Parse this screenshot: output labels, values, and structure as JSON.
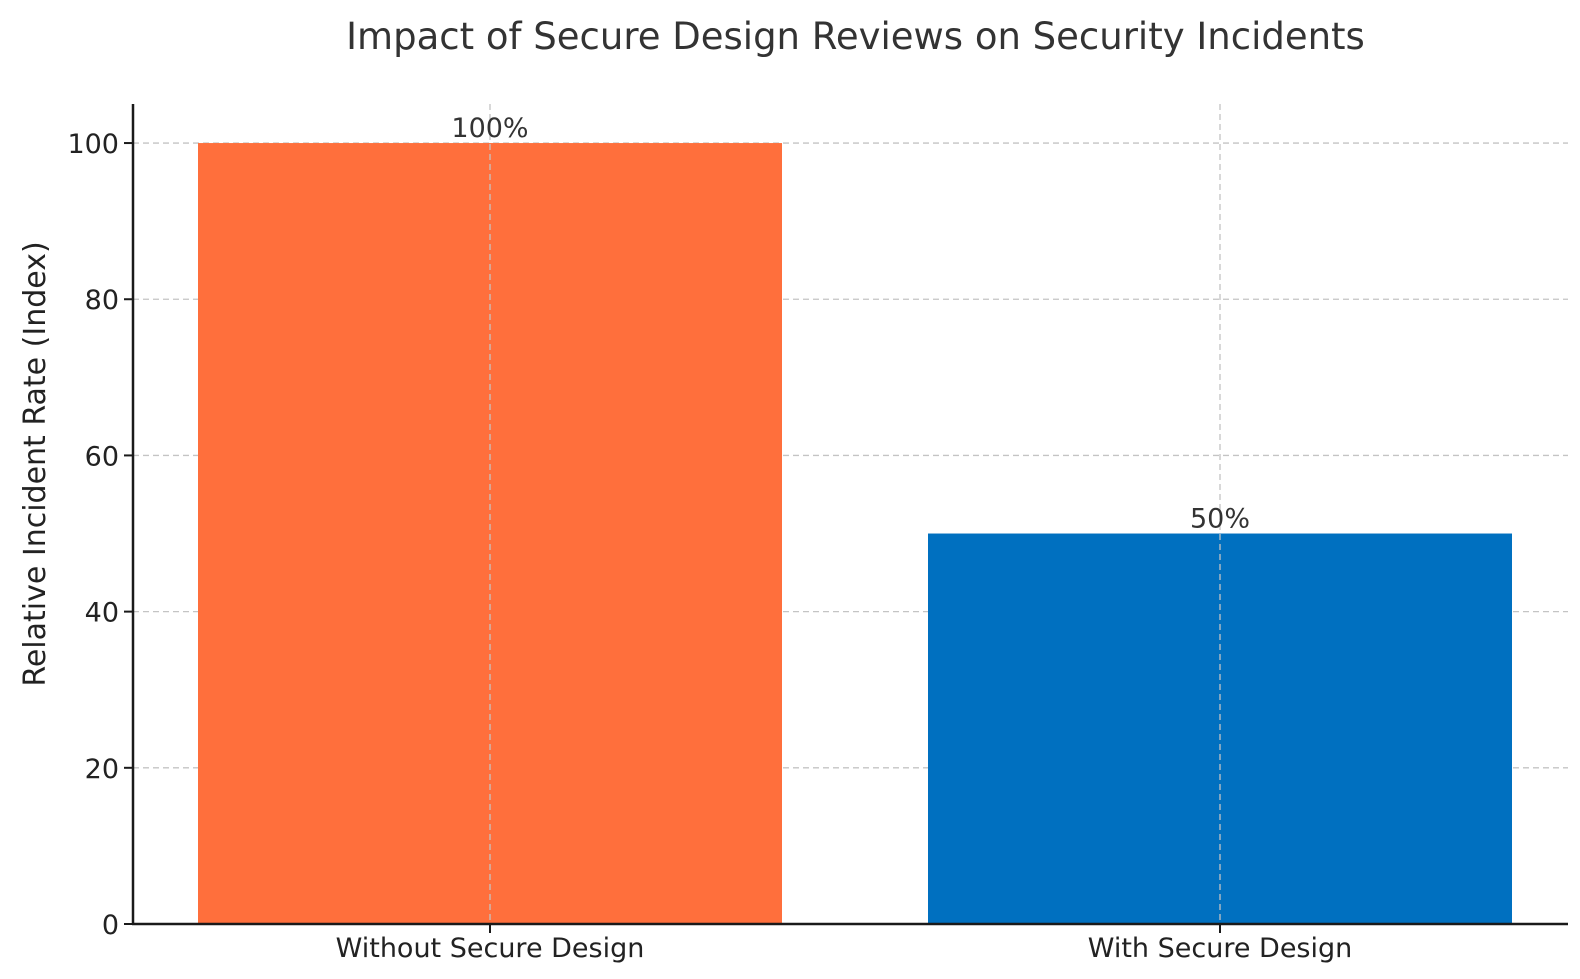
{
  "chart_data": {
    "type": "bar",
    "title": "Impact of Secure Design Reviews on Security Incidents",
    "xlabel": "",
    "ylabel": "Relative Incident Rate (Index)",
    "categories": [
      "Without Secure Design",
      "With Secure Design"
    ],
    "values": [
      100,
      50
    ],
    "value_labels": [
      "100%",
      "50%"
    ],
    "colors": [
      "#FF6F3C",
      "#0070C0"
    ],
    "ylim": [
      0,
      105
    ],
    "yticks": [
      0,
      20,
      40,
      60,
      80,
      100
    ],
    "grid": true
  }
}
